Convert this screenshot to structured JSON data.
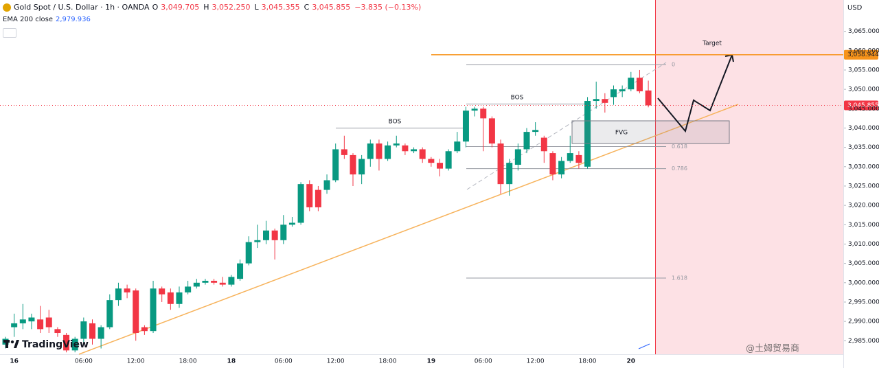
{
  "header": {
    "symbol": "Gold Spot / U.S. Dollar · 1h · OANDA",
    "ohlc": [
      "O",
      "3,049.705",
      "H",
      "3,052.250",
      "L",
      "3,045.355",
      "C",
      "3,045.855"
    ],
    "change": "−3.835 (−0.13%)",
    "indicator": "EMA 200 close",
    "indicator_value": "2,979.936"
  },
  "chart_data": {
    "type": "candlestick",
    "currency": "USD",
    "categories": [
      null,
      "16",
      null,
      null,
      null,
      null,
      null,
      null,
      null,
      "06:00",
      null,
      null,
      null,
      null,
      null,
      "12:00",
      null,
      null,
      null,
      null,
      null,
      "18:00",
      null,
      null,
      null,
      null,
      "18",
      null,
      null,
      null,
      null,
      null,
      "06:00",
      null,
      null,
      null,
      null,
      null,
      "12:00",
      null,
      null,
      null,
      null,
      null,
      "18:00",
      null,
      null,
      null,
      null,
      "19",
      null,
      null,
      null,
      null,
      null,
      "06:00",
      null,
      null,
      null,
      null,
      null,
      "12:00",
      null,
      null,
      null,
      null,
      null,
      "18:00",
      null,
      null,
      null,
      null,
      "20",
      null,
      null
    ],
    "open": [
      2984,
      2988.5,
      2989.5,
      2990,
      2990.5,
      2991,
      2988,
      2986.5,
      2982.5,
      2985.5,
      2989.5,
      2985.5,
      2988.5,
      2995.5,
      2998.5,
      2998,
      2988.5,
      2987.5,
      2998.5,
      2997.5,
      2994.5,
      2997.5,
      2999,
      3000,
      3000.5,
      3000,
      2999.5,
      3001,
      3005,
      3010.5,
      3011,
      3013.5,
      3011,
      3015,
      3015.5,
      3025.5,
      3024,
      3024,
      3026.5,
      3034.5,
      3033,
      3028,
      3032,
      3036,
      3032,
      3035.5,
      3035.5,
      3034,
      3034.5,
      3032,
      3031,
      3029.5,
      3034,
      3036.5,
      3044.5,
      3045,
      3042.5,
      3036,
      3025.5,
      3030.5,
      3034.5,
      3039,
      3037.5,
      3033.5,
      3028,
      3031.5,
      3033,
      3030,
      3047,
      3047.5,
      3048,
      3049.5,
      3050,
      3053,
      3049.705
    ],
    "high": [
      2986,
      2992,
      2994.5,
      2992,
      2994,
      2993,
      2988.5,
      2987,
      2986,
      2991,
      2990.5,
      2989,
      2997,
      3000,
      2999.5,
      2998.5,
      2989,
      3000.5,
      2999,
      2998.5,
      2999,
      3000.5,
      3001,
      3001,
      3001,
      3001.5,
      3002,
      3006,
      3012,
      3015,
      3016,
      3014,
      3017.5,
      3017,
      3026,
      3026.5,
      3025,
      3028,
      3036,
      3038,
      3033.5,
      3033,
      3037,
      3037,
      3036.5,
      3038,
      3036,
      3035,
      3035,
      3032.5,
      3032,
      3034.5,
      3039,
      3045.5,
      3045.5,
      3045.5,
      3043,
      3037,
      3032,
      3036,
      3040,
      3041.5,
      3038,
      3034,
      3032.5,
      3038,
      3034,
      3048,
      3052,
      3049,
      3051,
      3051,
      3054.5,
      3055,
      3052.25
    ],
    "low": [
      2983,
      2986,
      2988,
      2988,
      2987,
      2987,
      2986,
      2982,
      2982,
      2984,
      2984,
      2983,
      2988,
      2994,
      2996,
      2985,
      2986.5,
      2987,
      2995,
      2993,
      2993.5,
      2997,
      2998.5,
      2999.5,
      2999.5,
      2999,
      2999,
      3000.5,
      3004.5,
      3009,
      3010,
      3006,
      3010,
      3014.5,
      3015,
      3018.5,
      3018.5,
      3023,
      3026,
      3032,
      3025,
      3025.5,
      3030,
      3029,
      3031.5,
      3035,
      3033,
      3033.5,
      3031,
      3030,
      3027.5,
      3029,
      3033.5,
      3035,
      3043,
      3034,
      3035,
      3023,
      3022.5,
      3029,
      3033.5,
      3038,
      3031,
      3026.5,
      3027,
      3031,
      3029.5,
      3029.5,
      3045,
      3044,
      3046,
      3048,
      3049.5,
      3049,
      3045.355
    ],
    "close": [
      2985.5,
      2989.5,
      2990.5,
      2991,
      2988,
      2988.5,
      2987,
      2982.5,
      2985.5,
      2990,
      2985.5,
      2988.5,
      2995.5,
      2998.5,
      2997.5,
      2987,
      2987.5,
      2998.5,
      2997,
      2994.5,
      2997.5,
      2999,
      3000,
      3000.5,
      3000,
      2999.5,
      3001.5,
      3005,
      3010.5,
      3011,
      3013.5,
      3011,
      3015,
      3015.5,
      3025.5,
      3019.5,
      3019.5,
      3026.5,
      3034.5,
      3033,
      3028,
      3032,
      3036,
      3032,
      3035.5,
      3036,
      3034,
      3034.5,
      3032,
      3031,
      3029.5,
      3034,
      3036.5,
      3044.5,
      3045,
      3042.5,
      3036,
      3025.5,
      3031,
      3034.5,
      3039,
      3039.5,
      3034,
      3028,
      3031.5,
      3033.5,
      3031,
      3047,
      3047.5,
      3046.5,
      3050,
      3050,
      3053,
      3049.5,
      3045.855
    ],
    "up_color": "#089981",
    "down_color": "#f23645",
    "ylim": [
      2981.5,
      3073.1
    ],
    "yticks": [
      {
        "value": 2985,
        "label": "2,985.000"
      },
      {
        "value": 2990,
        "label": "2,990.000"
      },
      {
        "value": 2995,
        "label": "2,995.000"
      },
      {
        "value": 3000,
        "label": "3,000.000"
      },
      {
        "value": 3005,
        "label": "3,005.000"
      },
      {
        "value": 3010,
        "label": "3,010.000"
      },
      {
        "value": 3015,
        "label": "3,015.000"
      },
      {
        "value": 3020,
        "label": "3,020.000"
      },
      {
        "value": 3025,
        "label": "3,025.000"
      },
      {
        "value": 3030,
        "label": "3,030.000"
      },
      {
        "value": 3035,
        "label": "3,035.000"
      },
      {
        "value": 3040,
        "label": "3,040.000"
      },
      {
        "value": 3045,
        "label": "3,045.000"
      },
      {
        "value": 3050,
        "label": "3,050.000"
      },
      {
        "value": 3055,
        "label": "3,055.000"
      },
      {
        "value": 3060,
        "label": "3,060.000"
      },
      {
        "value": 3065,
        "label": "3,065.000"
      }
    ],
    "target_line": {
      "value": 3058.944,
      "label": "3,058.944",
      "color": "#f7931a"
    },
    "last_price": {
      "value": 3045.855,
      "label": "3,045.855"
    },
    "fib_levels": [
      {
        "label": "0",
        "price": 3056.4
      },
      {
        "label": "0.618",
        "price": 3035.2
      },
      {
        "label": "0.786",
        "price": 3029.5
      },
      {
        "label": "1.618",
        "price": 3001.2
      }
    ],
    "annotations": [
      "BOS",
      "BOS",
      "FVG",
      "Target"
    ],
    "watermark": "TradingView",
    "credit": "@土姆贸易商"
  }
}
